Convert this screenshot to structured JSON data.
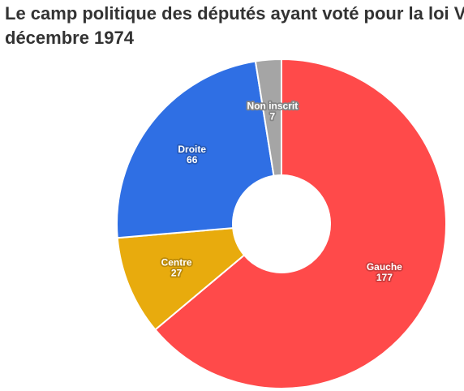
{
  "chart_data": {
    "type": "pie",
    "donut": true,
    "title_line1": "Le camp politique des députés ayant voté pour la loi V",
    "title_line2": "décembre 1974",
    "slices": [
      {
        "label": "Gauche",
        "value": 177,
        "color": "#ff4a4a"
      },
      {
        "label": "Centre",
        "value": 27,
        "color": "#e8ab0d"
      },
      {
        "label": "Droite",
        "value": 66,
        "color": "#2f6fe4"
      },
      {
        "label": "Non inscrit",
        "value": 7,
        "color": "#a5a5a5"
      }
    ]
  }
}
